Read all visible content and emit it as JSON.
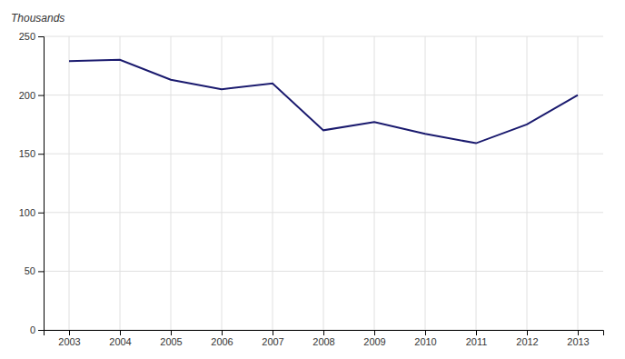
{
  "chart_data": {
    "type": "line",
    "ylabel": "Thousands",
    "x": [
      2003,
      2004,
      2005,
      2006,
      2007,
      2008,
      2009,
      2010,
      2011,
      2012,
      2013
    ],
    "values": [
      229,
      230,
      213,
      205,
      210,
      170,
      177,
      167,
      159,
      175,
      200
    ],
    "color": "#1a1a6e",
    "xlim": [
      2002.5,
      2013.5
    ],
    "xticks": [
      2003,
      2004,
      2005,
      2006,
      2007,
      2008,
      2009,
      2010,
      2011,
      2012,
      2013
    ],
    "ylim": [
      0,
      250
    ],
    "yticks": [
      0,
      50,
      100,
      150,
      200,
      250
    ],
    "grid": true
  }
}
